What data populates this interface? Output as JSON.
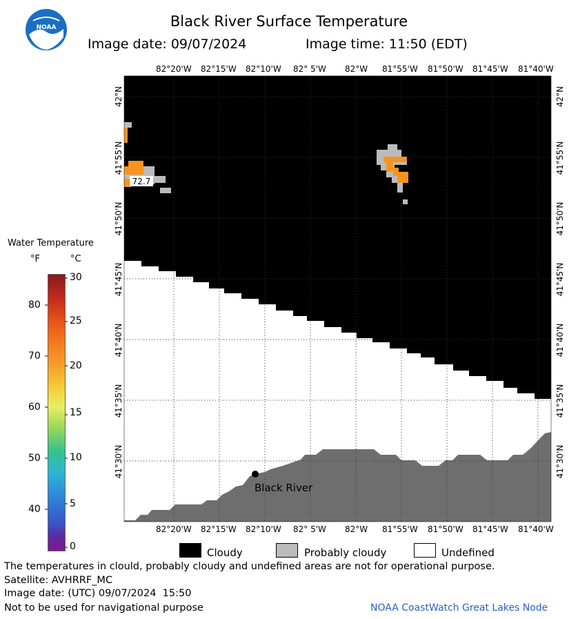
{
  "header": {
    "title": "Black River Surface Temperature",
    "image_date": "Image date: 09/07/2024",
    "image_time": "Image time: 11:50 (EDT)",
    "logo_text": "NOAA"
  },
  "map": {
    "lon_labels": [
      "82°20'W",
      "82°15'W",
      "82°10'W",
      "82° 5'W",
      "82°W",
      "81°55'W",
      "81°50'W",
      "81°45'W",
      "81°40'W"
    ],
    "lat_labels": [
      "42°N",
      "41°55'N",
      "41°50'N",
      "41°45'N",
      "41°40'N",
      "41°35'N",
      "41°30'N"
    ],
    "temp_label": "72.7",
    "place_label": "Black River",
    "colors": {
      "cloudy": "#000000",
      "probably_cloudy": "#bbbbbb",
      "undefined": "#ffffff",
      "land": "#6e6e6e",
      "water_warm": "#f7941e"
    }
  },
  "colorbar": {
    "title": "Water Temperature",
    "unit_f": "°F",
    "unit_c": "°C",
    "f_ticks": [
      "80",
      "70",
      "60",
      "50",
      "40"
    ],
    "c_ticks": [
      "30",
      "25",
      "20",
      "15",
      "10",
      "5",
      "0"
    ]
  },
  "legend": {
    "items": [
      {
        "label": "Cloudy",
        "color": "#000000"
      },
      {
        "label": "Probably cloudy",
        "color": "#bbbbbb"
      },
      {
        "label": "Undefined",
        "color": "#ffffff"
      }
    ]
  },
  "footer": {
    "disclaimer": "The temperatures in clould, probably cloudy and undefined areas are not for operational purpose.",
    "satellite": "Satellite: AVHRRF_MC",
    "utc_date": "Image date: (UTC) 09/07/2024  15:50",
    "nav_warning": "Not to be used for navigational purpose",
    "credit": "NOAA CoastWatch Great Lakes Node"
  }
}
